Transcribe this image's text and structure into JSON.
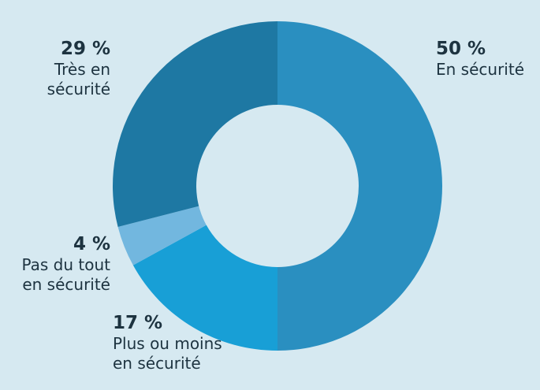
{
  "chart_data": {
    "type": "donut",
    "categories": [
      "En sécurité",
      "Plus ou moins en sécurité",
      "Pas du tout en sécurité",
      "Très en sécurité"
    ],
    "values": [
      50,
      17,
      4,
      29
    ],
    "value_labels": [
      "50 %",
      "17 %",
      "4 %",
      "29 %"
    ],
    "colors": [
      "#2a8fc0",
      "#189fd6",
      "#72b7df",
      "#1e78a3"
    ]
  }
}
